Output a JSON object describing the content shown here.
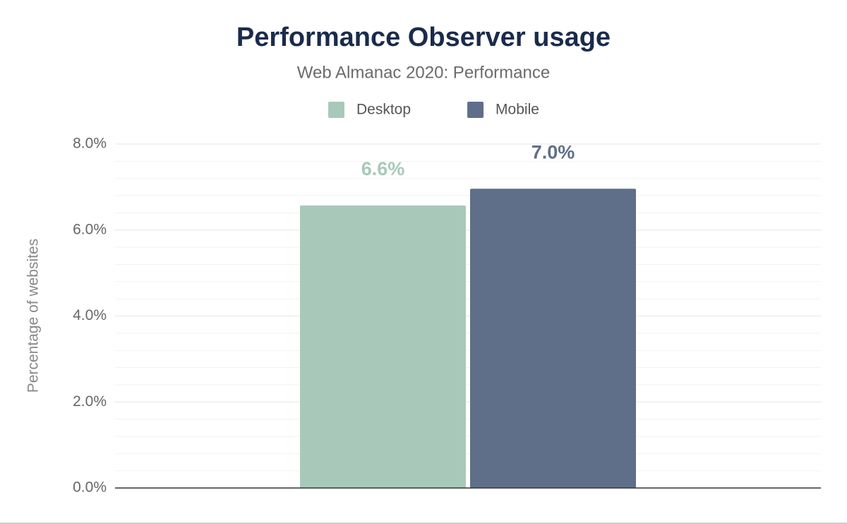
{
  "chart_data": {
    "type": "bar",
    "title": "Performance Observer usage",
    "subtitle": "Web Almanac 2020: Performance",
    "y_label": "Percentage of websites",
    "categories": [
      null
    ],
    "series": [
      {
        "name": "Desktop",
        "color": "#a8c9b9",
        "values": [
          6.57
        ],
        "value_labels": [
          "6.6%"
        ]
      },
      {
        "name": "Mobile",
        "color": "#5f6f8a",
        "values": [
          6.96
        ],
        "value_labels": [
          "7.0%"
        ]
      }
    ],
    "ylim": [
      0,
      8
    ],
    "yticks": [
      {
        "value": 0,
        "label": "0.0%"
      },
      {
        "value": 2,
        "label": "2.0%"
      },
      {
        "value": 4,
        "label": "4.0%"
      },
      {
        "value": 6,
        "label": "6.0%"
      },
      {
        "value": 8,
        "label": "8.0%"
      }
    ],
    "minor_yticks": [
      0.4,
      0.8,
      1.2,
      1.6,
      2.4,
      2.8,
      3.2,
      3.6,
      4.4,
      4.8,
      5.2,
      5.6,
      6.4,
      6.8,
      7.2,
      7.6
    ],
    "grid": true,
    "legend": "top"
  }
}
